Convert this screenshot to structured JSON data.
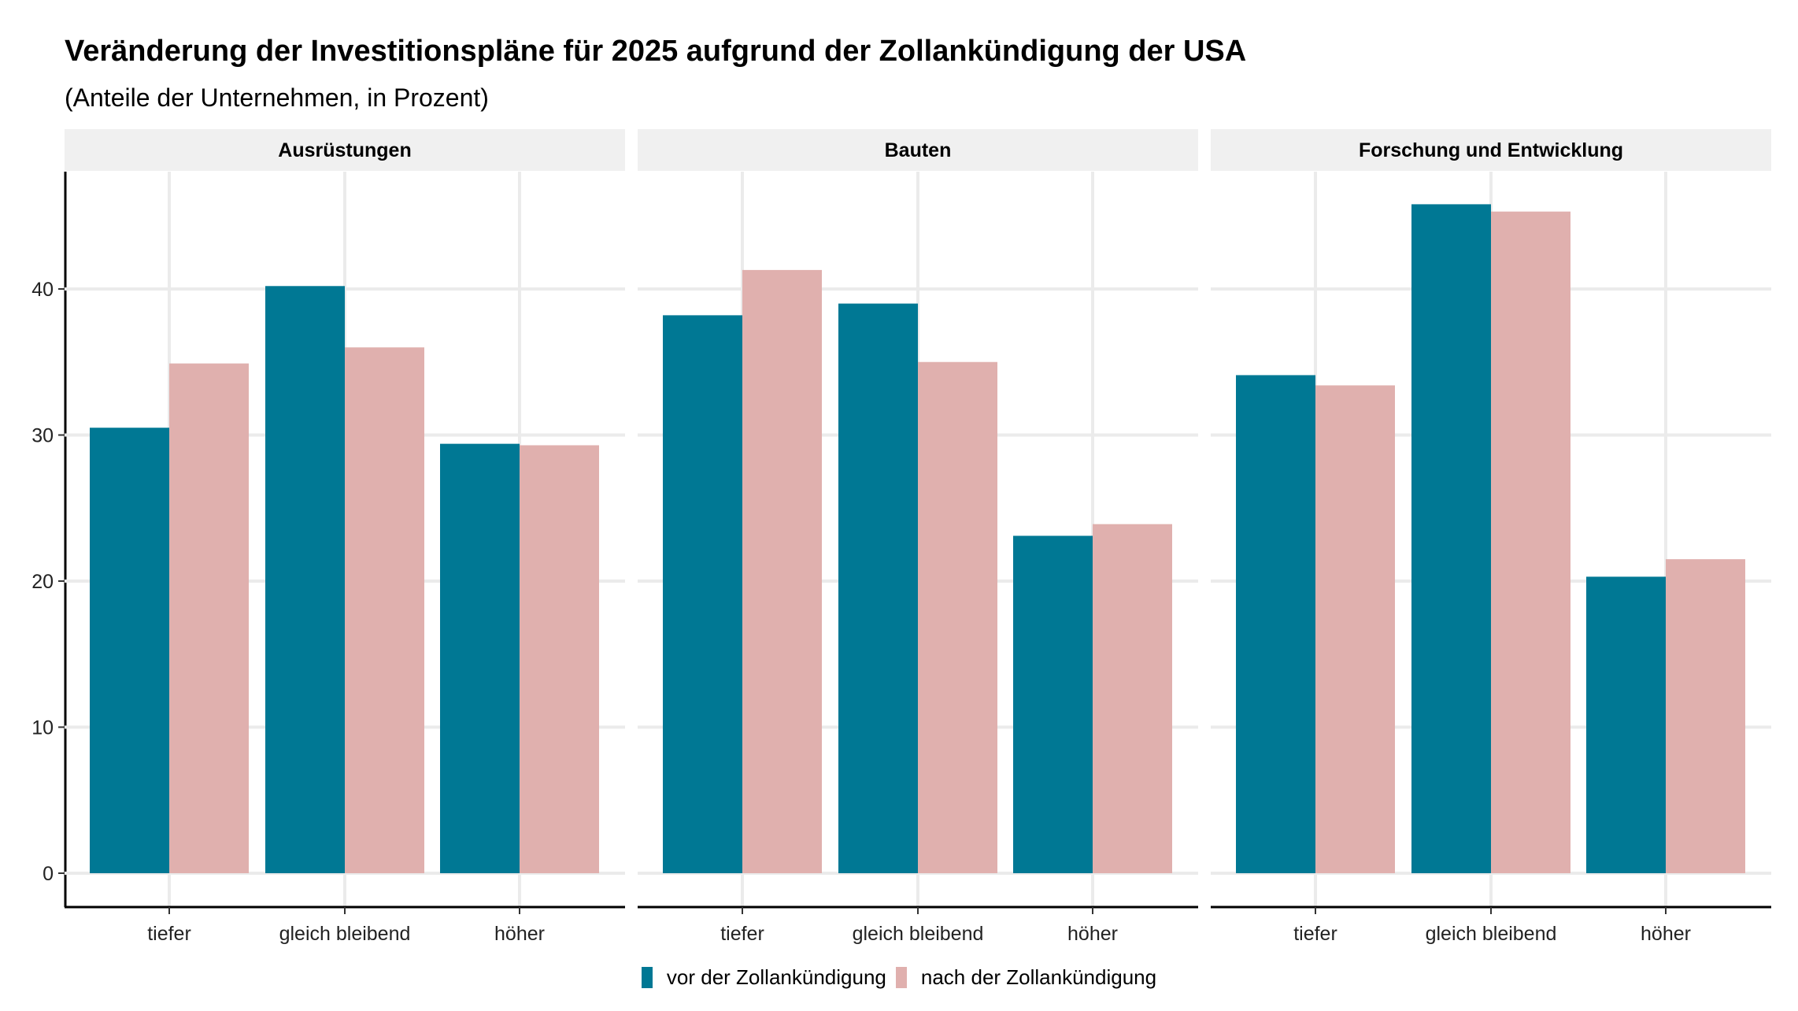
{
  "title": "Veränderung der Investitionspläne für 2025 aufgrund der Zollankündigung der USA",
  "subtitle": "(Anteile der Unternehmen, in Prozent)",
  "colors": {
    "vor": "#007894",
    "nach": "#e0b0ae",
    "strip": "#f0f0f0",
    "grid": "#ebebeb"
  },
  "chart_data": {
    "type": "bar",
    "facets": [
      "Ausrüstungen",
      "Bauten",
      "Forschung und Entwicklung"
    ],
    "categories": [
      "tiefer",
      "gleich bleibend",
      "höher"
    ],
    "ylim": [
      0,
      48
    ],
    "yticks": [
      0,
      10,
      20,
      30,
      40
    ],
    "grid": true,
    "legend_position": "bottom",
    "series": [
      {
        "name": "vor der Zollankündigung",
        "values": [
          [
            30.5,
            40.2,
            29.4
          ],
          [
            38.2,
            39.0,
            23.1
          ],
          [
            34.1,
            45.8,
            20.3
          ]
        ]
      },
      {
        "name": "nach der Zollankündigung",
        "values": [
          [
            34.9,
            36.0,
            29.3
          ],
          [
            41.3,
            35.0,
            23.9
          ],
          [
            33.4,
            45.3,
            21.5
          ]
        ]
      }
    ]
  }
}
